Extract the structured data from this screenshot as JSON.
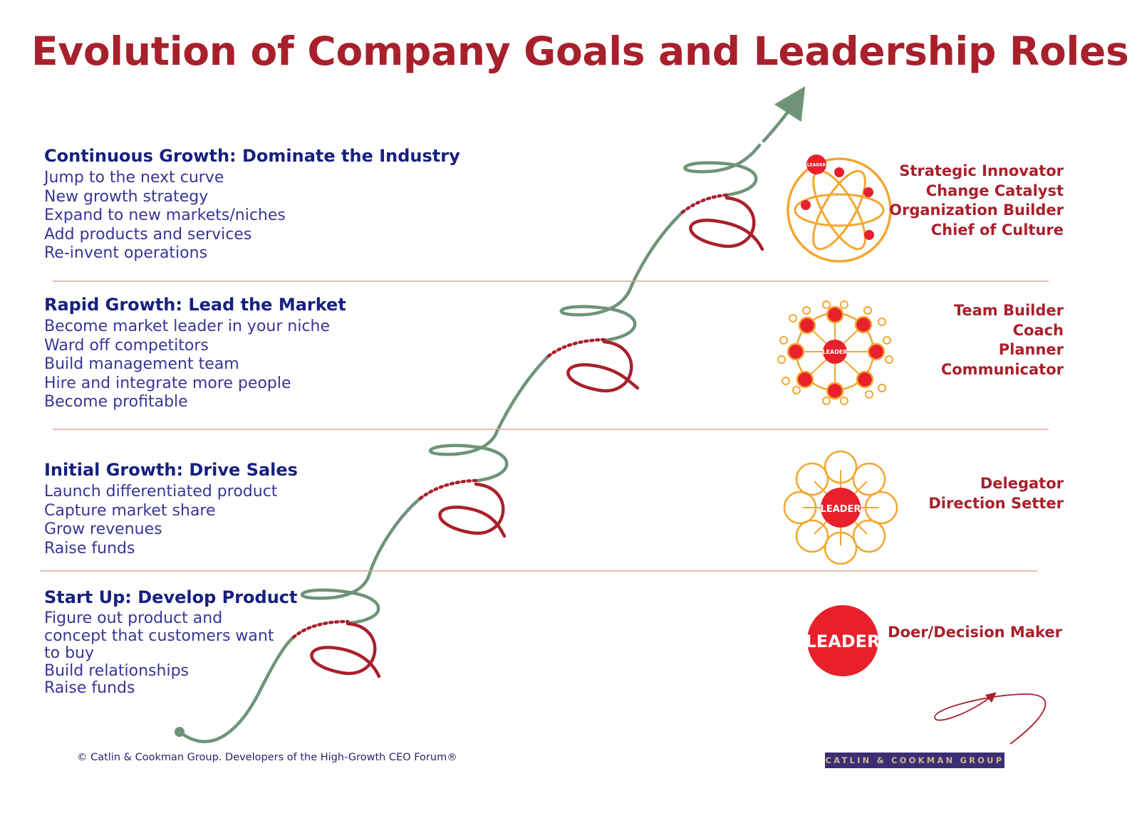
{
  "title": "Evolution of Company Goals and Leadership Roles",
  "stages": [
    {
      "heading": "Continuous Growth:  Dominate the Industry",
      "items": [
        "Jump to the next curve",
        "New growth strategy",
        "Expand to new markets/niches",
        "Add products and services",
        "Re-invent operations"
      ],
      "roles": [
        "Strategic Innovator",
        "Change Catalyst",
        "Organization Builder",
        "Chief of Culture"
      ],
      "icon_label": "LEADER"
    },
    {
      "heading": "Rapid Growth:  Lead the Market",
      "items": [
        "Become market leader in your niche",
        "Ward off competitors",
        "Build management team",
        "Hire and integrate more people",
        "Become profitable"
      ],
      "roles": [
        "Team Builder",
        "Coach",
        "Planner",
        "Communicator"
      ],
      "icon_label": "LEADER"
    },
    {
      "heading": "Initial Growth:  Drive Sales",
      "items": [
        "Launch differentiated product",
        "Capture market share",
        "Grow revenues",
        "Raise funds"
      ],
      "roles": [
        "Delegator",
        "Direction Setter"
      ],
      "icon_label": "LEADER"
    },
    {
      "heading": "Start Up:  Develop Product",
      "items": [
        "Figure out product and",
        "concept that customers want",
        "to buy",
        "Build relationships",
        "Raise funds"
      ],
      "roles": [
        "Doer/Decision Maker"
      ],
      "icon_label": "LEADER"
    }
  ],
  "footer": {
    "copyright": "© Catlin & Cookman Group.  Developers of  the High-Growth CEO Forum®",
    "brand": "CATLIN & COOKMAN GROUP"
  },
  "colors": {
    "title": "#a8202b",
    "heading": "#16207f",
    "body_text": "#3a3596",
    "role_text": "#a8202b",
    "green_curve": "#6f9478",
    "red_curve": "#a8202b",
    "leader_red": "#e8202b",
    "orbit_orange": "#f2a72f",
    "divider": "#d8a898",
    "brand_bar": "#3c2e74"
  }
}
